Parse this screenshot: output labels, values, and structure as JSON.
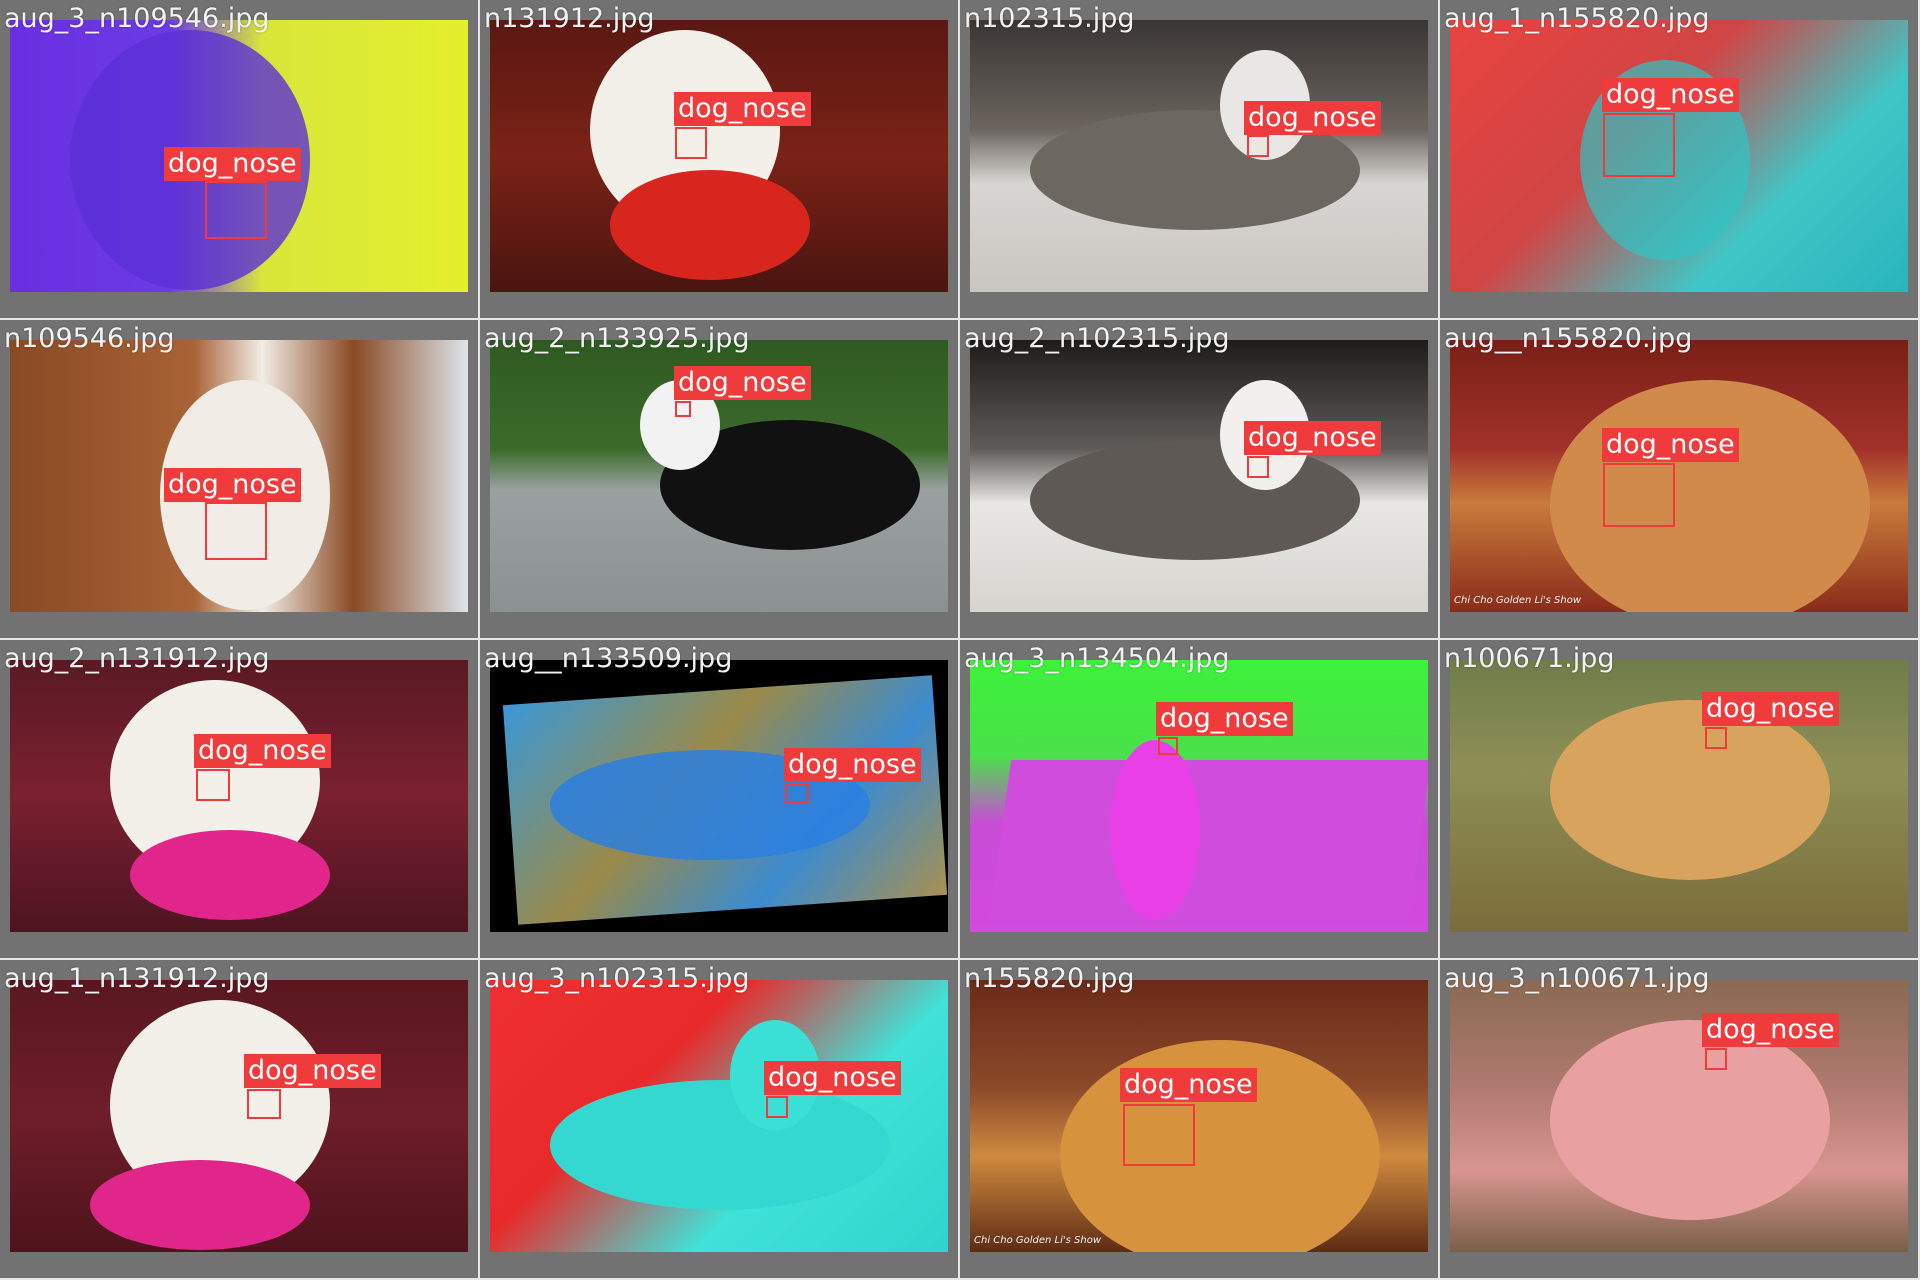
{
  "cells": [
    {
      "filename": "aug_3_n109546.jpg",
      "label": "dog_nose"
    },
    {
      "filename": "n131912.jpg",
      "label": "dog_nose"
    },
    {
      "filename": "n102315.jpg",
      "label": "dog_nose"
    },
    {
      "filename": "aug_1_n155820.jpg",
      "label": "dog_nose"
    },
    {
      "filename": "n109546.jpg",
      "label": "dog_nose"
    },
    {
      "filename": "aug_2_n133925.jpg",
      "label": "dog_nose"
    },
    {
      "filename": "aug_2_n102315.jpg",
      "label": "dog_nose"
    },
    {
      "filename": "aug__n155820.jpg",
      "label": "dog_nose"
    },
    {
      "filename": "aug_2_n131912.jpg",
      "label": "dog_nose"
    },
    {
      "filename": "aug__n133509.jpg",
      "label": "dog_nose"
    },
    {
      "filename": "aug_3_n134504.jpg",
      "label": "dog_nose"
    },
    {
      "filename": "n100671.jpg",
      "label": "dog_nose"
    },
    {
      "filename": "aug_1_n131912.jpg",
      "label": "dog_nose"
    },
    {
      "filename": "aug_3_n102315.jpg",
      "label": "dog_nose"
    },
    {
      "filename": "n155820.jpg",
      "label": "dog_nose"
    },
    {
      "filename": "aug_3_n100671.jpg",
      "label": "dog_nose"
    }
  ],
  "watermarks": {
    "golden": "Chi Cho Golden Li's Show"
  },
  "colors": {
    "tile_border": "#727272",
    "box": "#ef3b3b",
    "label_text": "#ffffff",
    "filename_text": "#f2f2f2"
  }
}
